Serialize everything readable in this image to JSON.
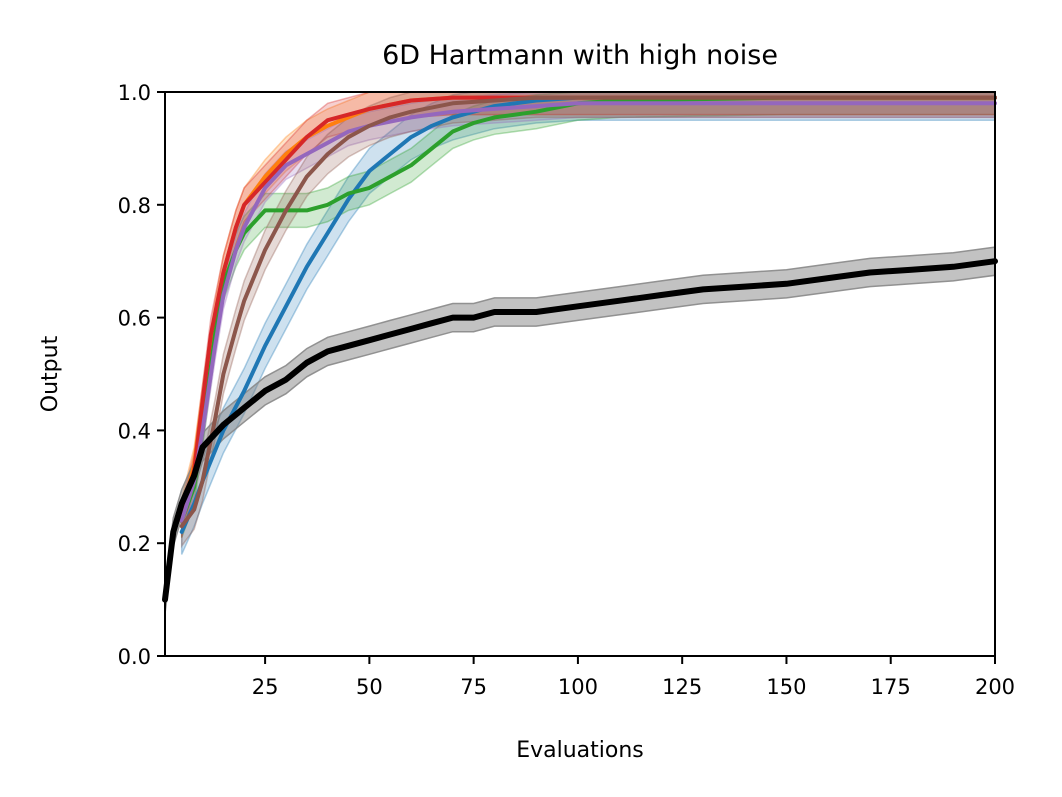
{
  "chart_data": {
    "type": "line",
    "title": "6D Hartmann with high noise",
    "xlabel": "Evaluations",
    "ylabel": "Output",
    "xlim": [
      1,
      200
    ],
    "ylim": [
      0.0,
      1.0
    ],
    "xticks": [
      25,
      50,
      75,
      100,
      125,
      150,
      175,
      200
    ],
    "yticks": [
      0.0,
      0.2,
      0.4,
      0.6,
      0.8,
      1.0
    ],
    "ytick_labels": [
      "0.0",
      "0.2",
      "0.4",
      "0.6",
      "0.8",
      "1.0"
    ],
    "grid": false,
    "series": [
      {
        "color": "#000000",
        "band": 0.025,
        "x": [
          1,
          3,
          5,
          8,
          10,
          15,
          20,
          25,
          30,
          35,
          40,
          45,
          50,
          55,
          60,
          65,
          70,
          75,
          80,
          90,
          100,
          110,
          120,
          130,
          140,
          150,
          160,
          170,
          180,
          190,
          200
        ],
        "y": [
          0.1,
          0.22,
          0.27,
          0.32,
          0.37,
          0.41,
          0.44,
          0.47,
          0.49,
          0.52,
          0.54,
          0.55,
          0.56,
          0.57,
          0.58,
          0.59,
          0.6,
          0.6,
          0.61,
          0.61,
          0.62,
          0.63,
          0.64,
          0.65,
          0.655,
          0.66,
          0.67,
          0.68,
          0.685,
          0.69,
          0.7
        ]
      },
      {
        "color": "#1f77b4",
        "band": 0.04,
        "x": [
          5,
          8,
          10,
          15,
          20,
          25,
          30,
          35,
          40,
          45,
          50,
          55,
          60,
          65,
          70,
          75,
          80,
          90,
          100,
          120,
          150,
          200
        ],
        "y": [
          0.22,
          0.27,
          0.31,
          0.4,
          0.47,
          0.55,
          0.62,
          0.69,
          0.75,
          0.81,
          0.86,
          0.89,
          0.92,
          0.94,
          0.955,
          0.965,
          0.975,
          0.985,
          0.99,
          0.99,
          0.99,
          0.99
        ]
      },
      {
        "color": "#ff7f0e",
        "band": 0.03,
        "x": [
          5,
          8,
          10,
          13,
          15,
          18,
          20,
          25,
          30,
          35,
          40,
          50,
          60,
          70,
          80,
          100,
          150,
          200
        ],
        "y": [
          0.25,
          0.34,
          0.45,
          0.6,
          0.68,
          0.76,
          0.8,
          0.85,
          0.89,
          0.92,
          0.94,
          0.97,
          0.985,
          0.99,
          0.99,
          0.99,
          0.99,
          0.99
        ]
      },
      {
        "color": "#2ca02c",
        "band": 0.03,
        "x": [
          5,
          8,
          10,
          13,
          15,
          18,
          20,
          25,
          30,
          35,
          40,
          45,
          50,
          55,
          60,
          65,
          70,
          75,
          80,
          85,
          90,
          100,
          110,
          150,
          200
        ],
        "y": [
          0.24,
          0.3,
          0.4,
          0.57,
          0.66,
          0.72,
          0.75,
          0.79,
          0.79,
          0.79,
          0.8,
          0.82,
          0.83,
          0.85,
          0.87,
          0.9,
          0.93,
          0.945,
          0.955,
          0.96,
          0.965,
          0.98,
          0.985,
          0.99,
          0.99
        ]
      },
      {
        "color": "#d62728",
        "band": 0.03,
        "x": [
          5,
          8,
          10,
          12,
          15,
          18,
          20,
          25,
          30,
          35,
          40,
          50,
          60,
          70,
          80,
          100,
          150,
          200
        ],
        "y": [
          0.24,
          0.33,
          0.45,
          0.57,
          0.68,
          0.76,
          0.8,
          0.84,
          0.88,
          0.92,
          0.95,
          0.97,
          0.985,
          0.99,
          0.99,
          0.99,
          0.99,
          0.99
        ]
      },
      {
        "color": "#9467bd",
        "band": 0.025,
        "x": [
          5,
          8,
          10,
          13,
          15,
          18,
          20,
          25,
          30,
          35,
          40,
          45,
          50,
          60,
          70,
          80,
          90,
          100,
          110,
          150,
          200
        ],
        "y": [
          0.24,
          0.31,
          0.4,
          0.55,
          0.64,
          0.72,
          0.76,
          0.83,
          0.87,
          0.89,
          0.91,
          0.93,
          0.94,
          0.955,
          0.965,
          0.97,
          0.975,
          0.98,
          0.98,
          0.98,
          0.98
        ]
      },
      {
        "color": "#8c564b",
        "band": 0.035,
        "x": [
          5,
          8,
          10,
          13,
          15,
          18,
          20,
          25,
          30,
          35,
          40,
          45,
          50,
          55,
          60,
          70,
          80,
          90,
          100,
          150,
          200
        ],
        "y": [
          0.23,
          0.26,
          0.31,
          0.42,
          0.5,
          0.58,
          0.63,
          0.72,
          0.79,
          0.85,
          0.89,
          0.92,
          0.94,
          0.955,
          0.965,
          0.98,
          0.985,
          0.99,
          0.99,
          0.99,
          0.99
        ]
      }
    ]
  }
}
